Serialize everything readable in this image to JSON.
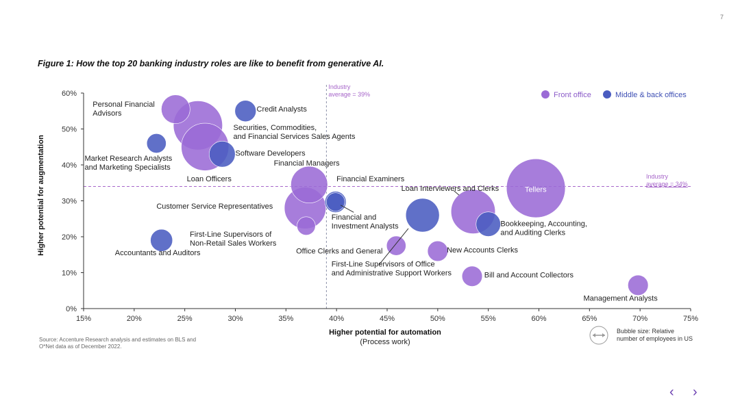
{
  "page": {
    "number": "7"
  },
  "figure": {
    "title": "Figure 1: How the top 20 banking industry roles are like to benefit from generative AI."
  },
  "source_note": "Source: Accenture Research analysis and estimates on BLS and O*Net data as of December 2022.",
  "nav": {
    "prev_icon": "chevron-left-icon",
    "next_icon": "chevron-right-icon"
  },
  "colors": {
    "front_office": "#9b6bd6",
    "back_office": "#4a5cc0",
    "reference": "#a665c9",
    "axis": "#333333"
  },
  "chart_data": {
    "type": "scatter",
    "subtype": "bubble",
    "xlabel": "Higher potential for automation",
    "xlabel_sub": "(Process work)",
    "ylabel": "Higher potential for augmentation",
    "xlim": [
      15,
      75
    ],
    "ylim": [
      0,
      60
    ],
    "x_ticks": [
      "15%",
      "20%",
      "25%",
      "30%",
      "35%",
      "40%",
      "45%",
      "50%",
      "55%",
      "60%",
      "65%",
      "70%",
      "75%"
    ],
    "y_ticks": [
      "0%",
      "10%",
      "20%",
      "30%",
      "40%",
      "50%",
      "60%"
    ],
    "reference_lines": {
      "vertical": {
        "value": 39,
        "label_line1": "Industry",
        "label_line2": "average = 39%"
      },
      "horizontal": {
        "value": 34,
        "label_line1": "Industry",
        "label_line2": "average = 34%"
      }
    },
    "legend": {
      "position": "top-right",
      "entries": [
        {
          "name": "Front office",
          "group": "front"
        },
        {
          "name": "Middle & back offices",
          "group": "back"
        }
      ]
    },
    "size_legend": {
      "line1": "Bubble size: Relative",
      "line2": "number of employees in US"
    },
    "points": [
      {
        "label": "Personal Financial Advisors",
        "x": 24.1,
        "y": 55.5,
        "size": 1.1,
        "group": "front"
      },
      {
        "label": "Credit Analysts",
        "x": 31,
        "y": 55,
        "size": 0.6,
        "group": "back"
      },
      {
        "label": "Securities, Commodities, and Financial Services Sales Agents",
        "x": 26.3,
        "y": 51,
        "size": 3.2,
        "group": "front"
      },
      {
        "label": "Loan Officers",
        "x": 27,
        "y": 45,
        "size": 3.0,
        "group": "front"
      },
      {
        "label": "Market Research Analysts and Marketing Specialists",
        "x": 22.2,
        "y": 46,
        "size": 0.5,
        "group": "back"
      },
      {
        "label": "Software Developers",
        "x": 28.7,
        "y": 43,
        "size": 0.9,
        "group": "back"
      },
      {
        "label": "Financial Managers",
        "x": 37.3,
        "y": 34.5,
        "size": 1.8,
        "group": "front"
      },
      {
        "label": "Customer Service Representatives",
        "x": 36.9,
        "y": 28,
        "size": 2.3,
        "group": "front"
      },
      {
        "label": "Financial Examiners",
        "x": 39.9,
        "y": 29.7,
        "size": 0.6,
        "group": "back"
      },
      {
        "label": "Financial and Investment Analysts",
        "x": 39.9,
        "y": 29.7,
        "size": 0.45,
        "group": "back"
      },
      {
        "label": "First-Line Supervisors of Non-Retail Sales Workers",
        "x": 37,
        "y": 23,
        "size": 0.45,
        "group": "front"
      },
      {
        "label": "Accountants and Auditors",
        "x": 22.7,
        "y": 19,
        "size": 0.65,
        "group": "back"
      },
      {
        "label": "Office Clerks and General",
        "x": 45.9,
        "y": 17.5,
        "size": 0.5,
        "group": "front"
      },
      {
        "label": "First-Line Supervisors of Office and Administrative Support Workers",
        "x": 48.5,
        "y": 26,
        "size": 1.5,
        "group": "back"
      },
      {
        "label": "Loan Interviewers and Clerks",
        "x": 53.5,
        "y": 27,
        "size": 2.6,
        "group": "front"
      },
      {
        "label": "Bookkeeping, Accounting, and Auditing Clerks",
        "x": 55,
        "y": 23.5,
        "size": 0.8,
        "group": "back"
      },
      {
        "label": "Tellers",
        "x": 59.7,
        "y": 33.5,
        "size": 4.6,
        "group": "front"
      },
      {
        "label": "New Accounts Clerks",
        "x": 50,
        "y": 16,
        "size": 0.55,
        "group": "front"
      },
      {
        "label": "Bill and Account Collectors",
        "x": 53.4,
        "y": 9,
        "size": 0.55,
        "group": "front"
      },
      {
        "label": "Management Analysts",
        "x": 69.8,
        "y": 6.5,
        "size": 0.55,
        "group": "front"
      }
    ],
    "point_labels": [
      {
        "lines": [
          "Personal Financial",
          "Advisors"
        ],
        "anchor": "start",
        "x": 15.9,
        "y": 56.2
      },
      {
        "lines": [
          "Credit Analysts"
        ],
        "anchor": "start",
        "x": 32.1,
        "y": 54.9
      },
      {
        "lines": [
          "Securities, Commodities,",
          "and Financial Services Sales Agents"
        ],
        "anchor": "start",
        "x": 29.8,
        "y": 49.7
      },
      {
        "lines": [
          "Market Research Analysts",
          "and Marketing Specialists"
        ],
        "anchor": "start",
        "x": 15.1,
        "y": 41.1
      },
      {
        "lines": [
          "Software Developers"
        ],
        "anchor": "start",
        "x": 30.0,
        "y": 42.6
      },
      {
        "lines": [
          "Financial Managers"
        ],
        "anchor": "start",
        "x": 33.8,
        "y": 39.8
      },
      {
        "lines": [
          "Loan Officers"
        ],
        "anchor": "start",
        "x": 25.2,
        "y": 35.4
      },
      {
        "lines": [
          "Financial Examiners"
        ],
        "anchor": "start",
        "x": 40.0,
        "y": 35.4
      },
      {
        "lines": [
          "Loan Interviewers and Clerks"
        ],
        "anchor": "start",
        "x": 46.4,
        "y": 32.8
      },
      {
        "lines": [
          "Tellers"
        ],
        "anchor": "start",
        "x": 58.6,
        "y": 32.5,
        "inside": true
      },
      {
        "lines": [
          "Customer Service Representatives"
        ],
        "anchor": "start",
        "x": 22.2,
        "y": 27.8
      },
      {
        "lines": [
          "Financial and",
          "Investment Analysts"
        ],
        "anchor": "start",
        "x": 39.5,
        "y": 24.8
      },
      {
        "lines": [
          "Bookkeeping, Accounting,",
          "and Auditing Clerks"
        ],
        "anchor": "start",
        "x": 56.2,
        "y": 23.0
      },
      {
        "lines": [
          "First-Line Supervisors of",
          "Non-Retail Sales Workers"
        ],
        "anchor": "start",
        "x": 25.5,
        "y": 20.0
      },
      {
        "lines": [
          "Accountants and Auditors"
        ],
        "anchor": "start",
        "x": 18.1,
        "y": 14.9
      },
      {
        "lines": [
          "Office Clerks and General"
        ],
        "anchor": "start",
        "x": 36.0,
        "y": 15.3
      },
      {
        "lines": [
          "New Accounts Clerks"
        ],
        "anchor": "start",
        "x": 50.9,
        "y": 15.6
      },
      {
        "lines": [
          "First-Line Supervisors of Office",
          "and Administrative Support Workers"
        ],
        "anchor": "start",
        "x": 39.5,
        "y": 11.7
      },
      {
        "lines": [
          "Bill and Account Collectors"
        ],
        "anchor": "start",
        "x": 54.6,
        "y": 8.7
      },
      {
        "lines": [
          "Management Analysts"
        ],
        "anchor": "start",
        "x": 64.4,
        "y": 2.2
      }
    ],
    "leaders": [
      {
        "from": [
          40.4,
          28.8
        ],
        "to": [
          41.7,
          26.8
        ]
      },
      {
        "from": [
          47.1,
          22.3
        ],
        "to": [
          44.2,
          12.2
        ]
      },
      {
        "from": [
          52.1,
          31.6
        ],
        "to": [
          51.6,
          32.8
        ]
      }
    ]
  }
}
